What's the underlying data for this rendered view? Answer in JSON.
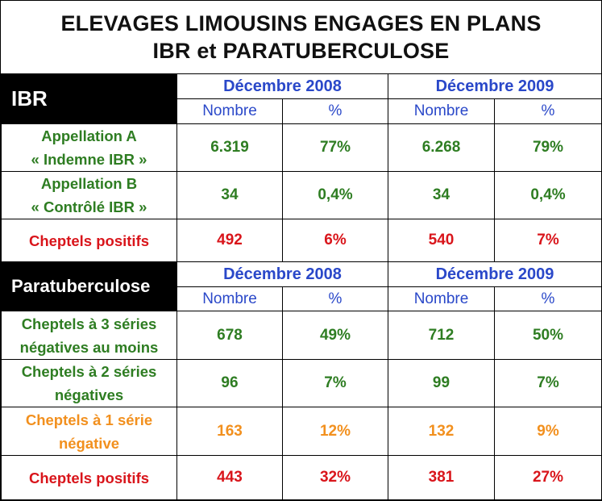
{
  "title": {
    "line1": "ELEVAGES LIMOUSINS ENGAGES EN PLANS",
    "line2": "IBR et PARATUBERCULOSE"
  },
  "colors": {
    "green": "#2e7d22",
    "red": "#d9151b",
    "orange": "#f2901e",
    "blue": "#2a48c9"
  },
  "ibr": {
    "heading": "IBR",
    "period1": "Décembre 2008",
    "period2": "Décembre 2009",
    "col_nombre": "Nombre",
    "col_pct": "%",
    "rows": [
      {
        "label1": "Appellation A",
        "label2": "« Indemne IBR »",
        "n2008": "6.319",
        "p2008": "77%",
        "n2009": "6.268",
        "p2009": "79%"
      },
      {
        "label1": "Appellation B",
        "label2": "« Contrôlé IBR »",
        "n2008": "34",
        "p2008": "0,4%",
        "n2009": "34",
        "p2009": "0,4%"
      },
      {
        "label1": "Cheptels positifs",
        "n2008": "492",
        "p2008": "6%",
        "n2009": "540",
        "p2009": "7%"
      }
    ]
  },
  "para": {
    "heading": "Paratuberculose",
    "period1": "Décembre 2008",
    "period2": "Décembre 2009",
    "col_nombre": "Nombre",
    "col_pct": "%",
    "rows": [
      {
        "label1": "Cheptels à 3 séries",
        "label2": "négatives au moins",
        "n2008": "678",
        "p2008": "49%",
        "n2009": "712",
        "p2009": "50%"
      },
      {
        "label1": "Cheptels à 2 séries",
        "label2": "négatives",
        "n2008": "96",
        "p2008": "7%",
        "n2009": "99",
        "p2009": "7%"
      },
      {
        "label1": "Cheptels à 1 série",
        "label2": "négative",
        "n2008": "163",
        "p2008": "12%",
        "n2009": "132",
        "p2009": "9%"
      },
      {
        "label1": "Cheptels positifs",
        "n2008": "443",
        "p2008": "32%",
        "n2009": "381",
        "p2009": "27%"
      }
    ]
  }
}
